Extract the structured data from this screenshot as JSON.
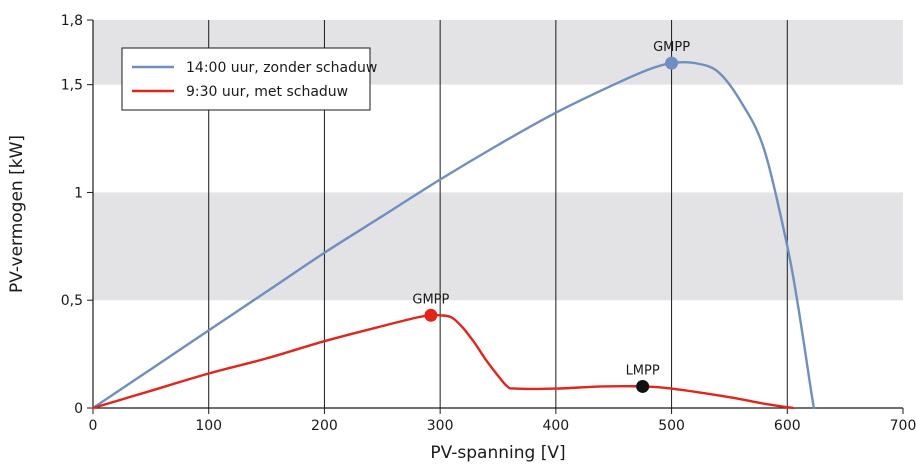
{
  "chart_data": {
    "type": "line",
    "xlabel": "PV-spanning [V]",
    "ylabel": "PV-vermogen [kW]",
    "xlim": [
      0,
      700
    ],
    "ylim": [
      0,
      1.8
    ],
    "x_ticks": [
      0,
      100,
      200,
      300,
      400,
      500,
      600,
      700
    ],
    "x_tick_labels": [
      "0",
      "100",
      "200",
      "300",
      "400",
      "500",
      "600",
      "700"
    ],
    "y_ticks": [
      0,
      0.5,
      1,
      1.5,
      1.8
    ],
    "y_tick_labels": [
      "0",
      "0,5",
      "1",
      "1,5",
      "1,8"
    ],
    "grid": "vertical lines and alternating horizontal gray bands",
    "bands": [
      [
        0.5,
        1.0
      ],
      [
        1.5,
        1.8
      ]
    ],
    "legend_position": "top-left",
    "series": [
      {
        "name": "14:00 uur, zonder schaduw",
        "color": "#6e8fbf",
        "points": [
          [
            0,
            0
          ],
          [
            50,
            0.18
          ],
          [
            100,
            0.36
          ],
          [
            150,
            0.54
          ],
          [
            200,
            0.72
          ],
          [
            250,
            0.89
          ],
          [
            300,
            1.06
          ],
          [
            350,
            1.22
          ],
          [
            400,
            1.37
          ],
          [
            450,
            1.5
          ],
          [
            480,
            1.57
          ],
          [
            500,
            1.6
          ],
          [
            520,
            1.6
          ],
          [
            540,
            1.56
          ],
          [
            560,
            1.42
          ],
          [
            580,
            1.2
          ],
          [
            600,
            0.75
          ],
          [
            610,
            0.45
          ],
          [
            620,
            0.1
          ],
          [
            623,
            0
          ]
        ]
      },
      {
        "name": "9:30 uur, met schaduw",
        "color": "#e2241b",
        "points": [
          [
            0,
            0
          ],
          [
            50,
            0.08
          ],
          [
            100,
            0.16
          ],
          [
            150,
            0.23
          ],
          [
            200,
            0.31
          ],
          [
            250,
            0.38
          ],
          [
            280,
            0.42
          ],
          [
            292,
            0.43
          ],
          [
            300,
            0.43
          ],
          [
            310,
            0.42
          ],
          [
            320,
            0.37
          ],
          [
            330,
            0.3
          ],
          [
            340,
            0.22
          ],
          [
            350,
            0.15
          ],
          [
            358,
            0.1
          ],
          [
            365,
            0.09
          ],
          [
            400,
            0.09
          ],
          [
            440,
            0.1
          ],
          [
            475,
            0.1
          ],
          [
            500,
            0.09
          ],
          [
            550,
            0.05
          ],
          [
            580,
            0.02
          ],
          [
            605,
            0
          ]
        ]
      }
    ],
    "annotations": [
      {
        "text": "GMPP",
        "x": 500,
        "y": 1.6,
        "marker_color": "#6e8fbf"
      },
      {
        "text": "GMPP",
        "x": 292,
        "y": 0.43,
        "marker_color": "#e2241b"
      },
      {
        "text": "LMPP",
        "x": 475,
        "y": 0.1,
        "marker_color": "#111111"
      }
    ]
  }
}
